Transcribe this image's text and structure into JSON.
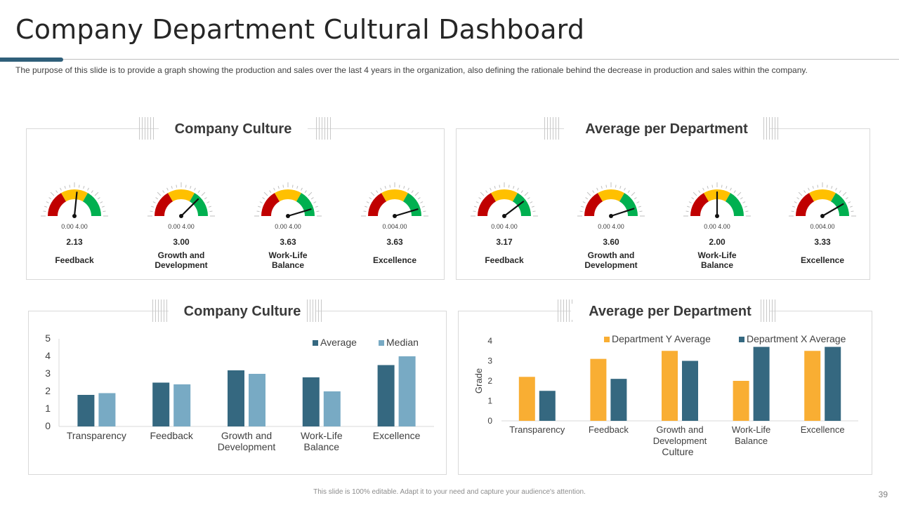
{
  "header": {
    "title": "Company Department Cultural Dashboard",
    "description": "The purpose of this slide is to provide a graph showing the production and sales over the last 4 years in the organization, also defining the rationale behind the decrease in production and sales within the company."
  },
  "gauge_panels": [
    {
      "title": "Company Culture",
      "gauges": [
        {
          "value": 2.13,
          "value_text": "2.13",
          "label": "Feedback",
          "scale_text": "0.00  4.00"
        },
        {
          "value": 3.0,
          "value_text": "3.00",
          "label": "Growth and Development",
          "scale_text": "0.00  4.00"
        },
        {
          "value": 3.63,
          "value_text": "3.63",
          "label": "Work-Life Balance",
          "scale_text": "0.00  4.00"
        },
        {
          "value": 3.63,
          "value_text": "3.63",
          "label": "Excellence",
          "scale_text": "0.004.00"
        }
      ]
    },
    {
      "title": "Average per Department",
      "gauges": [
        {
          "value": 3.17,
          "value_text": "3.17",
          "label": "Feedback",
          "scale_text": "0.00  4.00"
        },
        {
          "value": 3.6,
          "value_text": "3.60",
          "label": "Growth and Development",
          "scale_text": "0.00  4.00"
        },
        {
          "value": 2.0,
          "value_text": "2.00",
          "label": "Work-Life Balance",
          "scale_text": "0.00  4.00"
        },
        {
          "value": 3.33,
          "value_text": "3.33",
          "label": "Excellence",
          "scale_text": "0.004.00"
        }
      ]
    }
  ],
  "colors": {
    "gauge_red": "#c00000",
    "gauge_yellow": "#ffc000",
    "gauge_green": "#00b050",
    "dark_blue": "#356880",
    "light_blue": "#78aac4",
    "orange": "#f9ae33"
  },
  "chart_data": [
    {
      "type": "bar",
      "title": "Company Culture",
      "categories": [
        "Transparency",
        "Feedback",
        "Growth and Development",
        "Work-Life Balance",
        "Excellence"
      ],
      "category_lines": [
        [
          "Transparency"
        ],
        [
          "Feedback"
        ],
        [
          "Growth and",
          "Development"
        ],
        [
          "Work-Life",
          "Balance"
        ],
        [
          "Excellence"
        ]
      ],
      "series": [
        {
          "name": "Average",
          "values": [
            1.8,
            2.5,
            3.2,
            2.8,
            3.5
          ]
        },
        {
          "name": "Median",
          "values": [
            1.9,
            2.4,
            3.0,
            2.0,
            4.0
          ]
        }
      ],
      "yticks": [
        0,
        1,
        2,
        3,
        4,
        5
      ],
      "ylim": [
        0,
        5
      ],
      "xlabel": "",
      "ylabel": "",
      "legend": "top-right"
    },
    {
      "type": "bar",
      "title": "Average per Department",
      "categories": [
        "Transparency",
        "Feedback",
        "Growth and Development",
        "Work-Life Balance",
        "Excellence"
      ],
      "category_lines": [
        [
          "Transparency"
        ],
        [
          "Feedback"
        ],
        [
          "Growth and",
          "Development"
        ],
        [
          "Work-Life",
          "Balance"
        ],
        [
          "Excellence"
        ]
      ],
      "series": [
        {
          "name": "Department Y Average",
          "values": [
            2.2,
            3.1,
            3.5,
            2.0,
            3.5
          ]
        },
        {
          "name": "Department X Average",
          "values": [
            1.5,
            2.1,
            3.0,
            3.7,
            3.7
          ]
        }
      ],
      "yticks": [
        0,
        1,
        2,
        3,
        4
      ],
      "ylim": [
        0,
        4
      ],
      "xlabel": "Culture",
      "ylabel": "Grade",
      "legend": "top"
    }
  ],
  "footer": {
    "note": "This slide is 100% editable. Adapt it to your need and capture your audience's attention.",
    "page_number": "39"
  }
}
